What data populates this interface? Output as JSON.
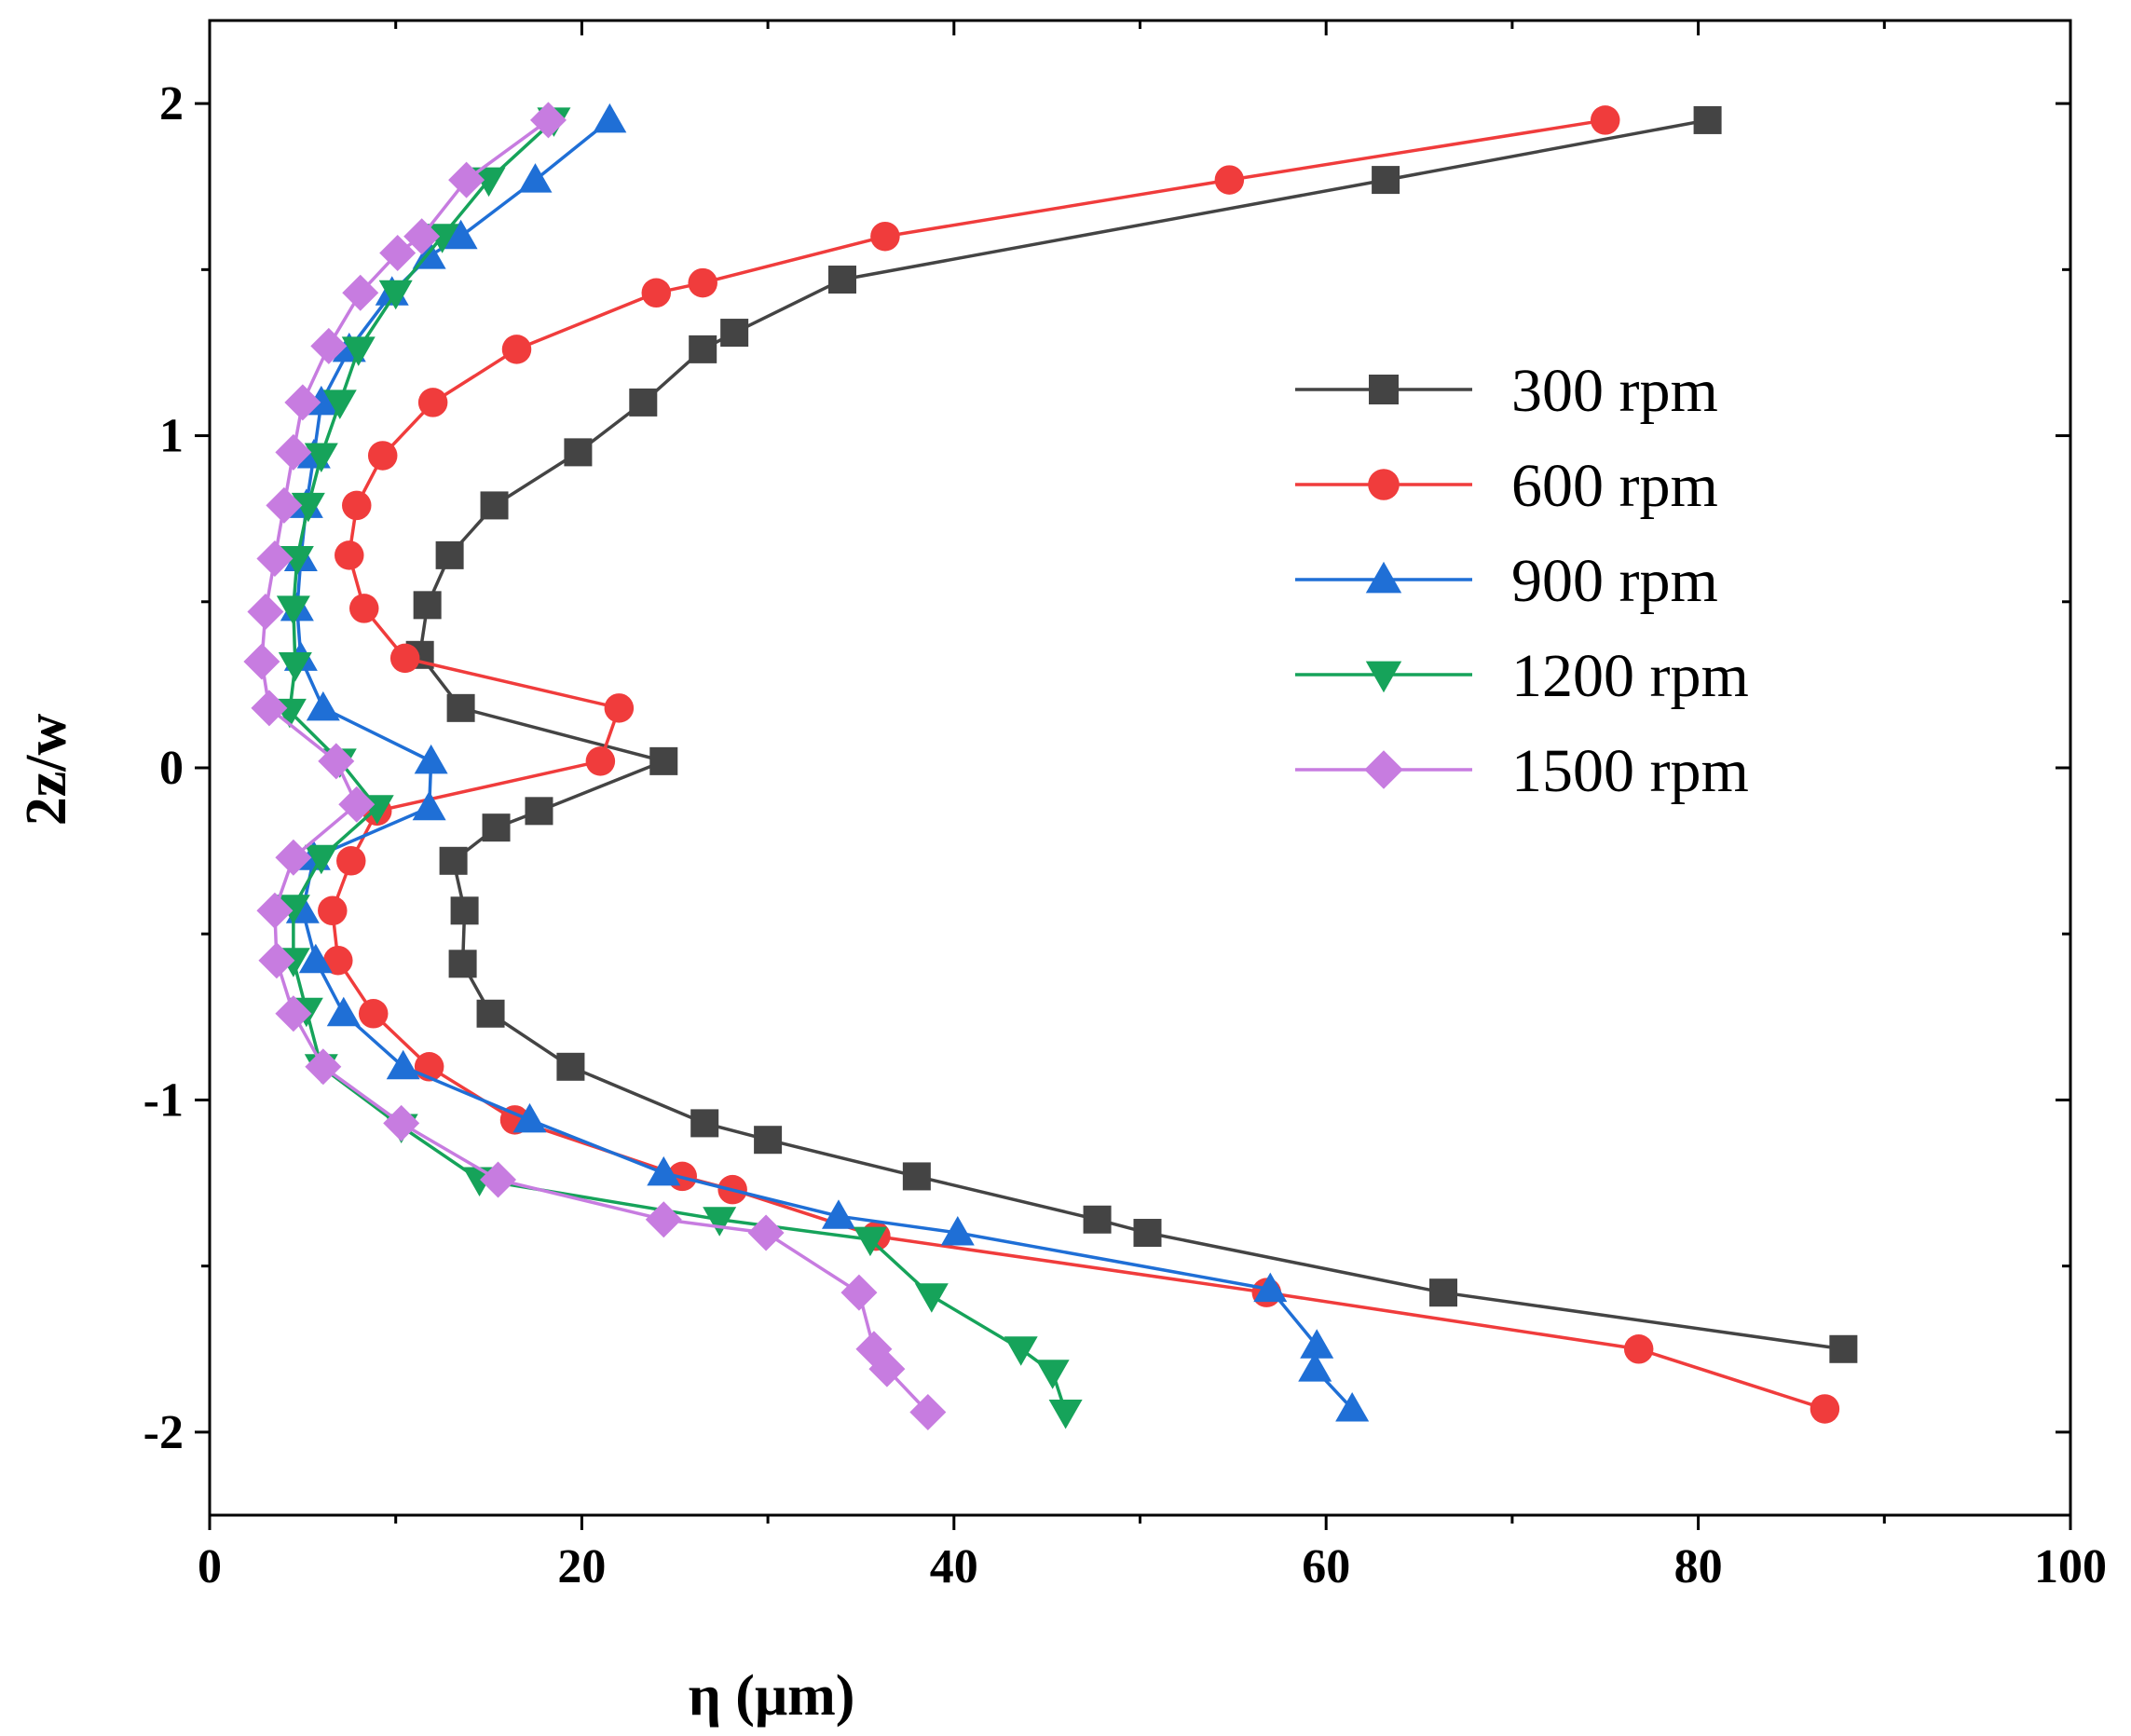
{
  "chart_data": {
    "type": "line",
    "title": "",
    "xlabel": "η (μm)",
    "ylabel": "2z/w",
    "xlim": [
      0,
      100
    ],
    "ylim": [
      -2.25,
      2.25
    ],
    "x_ticks": [
      "0",
      "20",
      "40",
      "60",
      "80",
      "100"
    ],
    "y_ticks": [
      "-2",
      "-1",
      "0",
      "1",
      "2"
    ],
    "grid": false,
    "legend_position": "right",
    "series": [
      {
        "name": "300 rpm",
        "color": "#444444",
        "marker": "square",
        "points": [
          [
            80.5,
            1.95
          ],
          [
            63.2,
            1.77
          ],
          [
            34.0,
            1.47
          ],
          [
            28.2,
            1.31
          ],
          [
            26.5,
            1.26
          ],
          [
            23.3,
            1.1
          ],
          [
            19.8,
            0.95
          ],
          [
            15.3,
            0.79
          ],
          [
            12.9,
            0.64
          ],
          [
            11.7,
            0.49
          ],
          [
            11.3,
            0.34
          ],
          [
            13.5,
            0.18
          ],
          [
            24.4,
            0.02
          ],
          [
            17.7,
            -0.13
          ],
          [
            15.4,
            -0.18
          ],
          [
            13.1,
            -0.28
          ],
          [
            13.7,
            -0.43
          ],
          [
            13.6,
            -0.59
          ],
          [
            15.1,
            -0.74
          ],
          [
            19.4,
            -0.9
          ],
          [
            26.6,
            -1.07
          ],
          [
            30.0,
            -1.12
          ],
          [
            38.0,
            -1.23
          ],
          [
            47.7,
            -1.36
          ],
          [
            50.4,
            -1.4
          ],
          [
            66.3,
            -1.58
          ],
          [
            87.8,
            -1.75
          ]
        ]
      },
      {
        "name": "600 rpm",
        "color": "#f03c3c",
        "marker": "circle",
        "points": [
          [
            75.0,
            1.95
          ],
          [
            54.8,
            1.77
          ],
          [
            36.3,
            1.6
          ],
          [
            26.5,
            1.46
          ],
          [
            24.0,
            1.43
          ],
          [
            16.5,
            1.26
          ],
          [
            12.0,
            1.1
          ],
          [
            9.3,
            0.94
          ],
          [
            7.9,
            0.79
          ],
          [
            7.5,
            0.64
          ],
          [
            8.3,
            0.48
          ],
          [
            10.5,
            0.33
          ],
          [
            22.0,
            0.18
          ],
          [
            21.0,
            0.02
          ],
          [
            9.0,
            -0.13
          ],
          [
            7.6,
            -0.28
          ],
          [
            6.6,
            -0.43
          ],
          [
            6.9,
            -0.58
          ],
          [
            8.8,
            -0.74
          ],
          [
            11.8,
            -0.9
          ],
          [
            16.4,
            -1.06
          ],
          [
            25.4,
            -1.23
          ],
          [
            28.1,
            -1.27
          ],
          [
            35.8,
            -1.41
          ],
          [
            56.8,
            -1.58
          ],
          [
            76.8,
            -1.75
          ],
          [
            86.8,
            -1.93
          ]
        ]
      },
      {
        "name": "900 rpm",
        "color": "#1f6fd6",
        "marker": "triangle-up",
        "points": [
          [
            21.5,
            1.95
          ],
          [
            17.5,
            1.77
          ],
          [
            13.5,
            1.6
          ],
          [
            11.8,
            1.54
          ],
          [
            9.8,
            1.43
          ],
          [
            7.5,
            1.26
          ],
          [
            6.0,
            1.1
          ],
          [
            5.6,
            0.94
          ],
          [
            5.2,
            0.79
          ],
          [
            4.9,
            0.63
          ],
          [
            4.7,
            0.48
          ],
          [
            4.9,
            0.33
          ],
          [
            6.1,
            0.18
          ],
          [
            11.9,
            0.02
          ],
          [
            11.8,
            -0.12
          ],
          [
            5.6,
            -0.27
          ],
          [
            5.0,
            -0.43
          ],
          [
            5.7,
            -0.58
          ],
          [
            7.2,
            -0.74
          ],
          [
            10.4,
            -0.9
          ],
          [
            17.2,
            -1.06
          ],
          [
            24.4,
            -1.22
          ],
          [
            33.8,
            -1.35
          ],
          [
            40.2,
            -1.4
          ],
          [
            57.0,
            -1.57
          ],
          [
            59.5,
            -1.74
          ],
          [
            59.4,
            -1.81
          ],
          [
            61.4,
            -1.93
          ]
        ]
      },
      {
        "name": "1200 rpm",
        "color": "#16a35a",
        "marker": "triangle-down",
        "points": [
          [
            18.5,
            1.95
          ],
          [
            15.0,
            1.77
          ],
          [
            12.5,
            1.6
          ],
          [
            10.0,
            1.43
          ],
          [
            8.0,
            1.26
          ],
          [
            7.0,
            1.1
          ],
          [
            6.0,
            0.94
          ],
          [
            5.3,
            0.79
          ],
          [
            4.7,
            0.63
          ],
          [
            4.5,
            0.48
          ],
          [
            4.6,
            0.31
          ],
          [
            4.3,
            0.17
          ],
          [
            7.0,
            0.02
          ],
          [
            9.0,
            -0.12
          ],
          [
            6.0,
            -0.27
          ],
          [
            4.5,
            -0.42
          ],
          [
            4.5,
            -0.58
          ],
          [
            5.2,
            -0.73
          ],
          [
            6.0,
            -0.9
          ],
          [
            10.3,
            -1.08
          ],
          [
            14.5,
            -1.24
          ],
          [
            27.4,
            -1.36
          ],
          [
            35.5,
            -1.42
          ],
          [
            38.8,
            -1.59
          ],
          [
            43.6,
            -1.75
          ],
          [
            45.3,
            -1.82
          ],
          [
            46.0,
            -1.94
          ]
        ]
      },
      {
        "name": "1500 rpm",
        "color": "#c77ce0",
        "marker": "diamond",
        "points": [
          [
            18.2,
            1.95
          ],
          [
            13.8,
            1.77
          ],
          [
            11.4,
            1.6
          ],
          [
            10.1,
            1.55
          ],
          [
            8.1,
            1.43
          ],
          [
            6.4,
            1.27
          ],
          [
            5.0,
            1.1
          ],
          [
            4.5,
            0.95
          ],
          [
            4.0,
            0.79
          ],
          [
            3.5,
            0.63
          ],
          [
            3.0,
            0.47
          ],
          [
            2.8,
            0.32
          ],
          [
            3.2,
            0.18
          ],
          [
            6.8,
            0.02
          ],
          [
            7.9,
            -0.11
          ],
          [
            4.5,
            -0.27
          ],
          [
            3.5,
            -0.43
          ],
          [
            3.6,
            -0.58
          ],
          [
            4.5,
            -0.74
          ],
          [
            6.1,
            -0.9
          ],
          [
            10.3,
            -1.07
          ],
          [
            15.5,
            -1.24
          ],
          [
            24.4,
            -1.36
          ],
          [
            29.9,
            -1.4
          ],
          [
            34.9,
            -1.58
          ],
          [
            35.7,
            -1.75
          ],
          [
            36.4,
            -1.81
          ],
          [
            38.6,
            -1.94
          ]
        ]
      }
    ]
  }
}
